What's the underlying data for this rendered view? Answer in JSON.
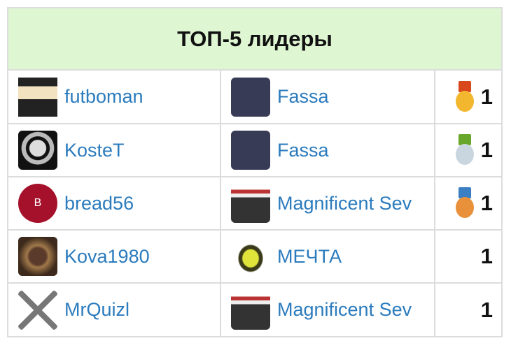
{
  "widget": {
    "title": "ТОП-5 лидеры",
    "rows": [
      {
        "player": "futboman",
        "player_avatar": "cartoon-man-avatar",
        "team": "Fassa",
        "team_logo": "fassa-logo",
        "score": "1",
        "medal": "gold",
        "medal_colors": {
          "ribbon": "#d9481c",
          "coin": "#f3b72f"
        }
      },
      {
        "player": "KosteT",
        "player_avatar": "skull-avatar",
        "team": "Fassa",
        "team_logo": "fassa-logo",
        "score": "1",
        "medal": "silver",
        "medal_colors": {
          "ribbon": "#69a62c",
          "coin": "#c9d6df"
        }
      },
      {
        "player": "bread56",
        "player_avatar": "letter-avatar",
        "player_initial": "B",
        "team": "Magnificent Sev",
        "team_logo": "magnificent-seven-logo",
        "score": "1",
        "medal": "bronze",
        "medal_colors": {
          "ribbon": "#3a7fc4",
          "coin": "#e8913a"
        }
      },
      {
        "player": "Kova1980",
        "player_avatar": "photo-avatar",
        "team": "МЕЧТА",
        "team_logo": "mechta-logo",
        "score": "1",
        "medal": null
      },
      {
        "player": "MrQuizl",
        "player_avatar": "crossed-guns-avatar",
        "team": "Magnificent Sev",
        "team_logo": "magnificent-seven-logo",
        "score": "1",
        "medal": null
      }
    ]
  },
  "colors": {
    "header_bg": "#dff6d2",
    "link": "#2b7bbd",
    "border": "#dcdcdc"
  }
}
